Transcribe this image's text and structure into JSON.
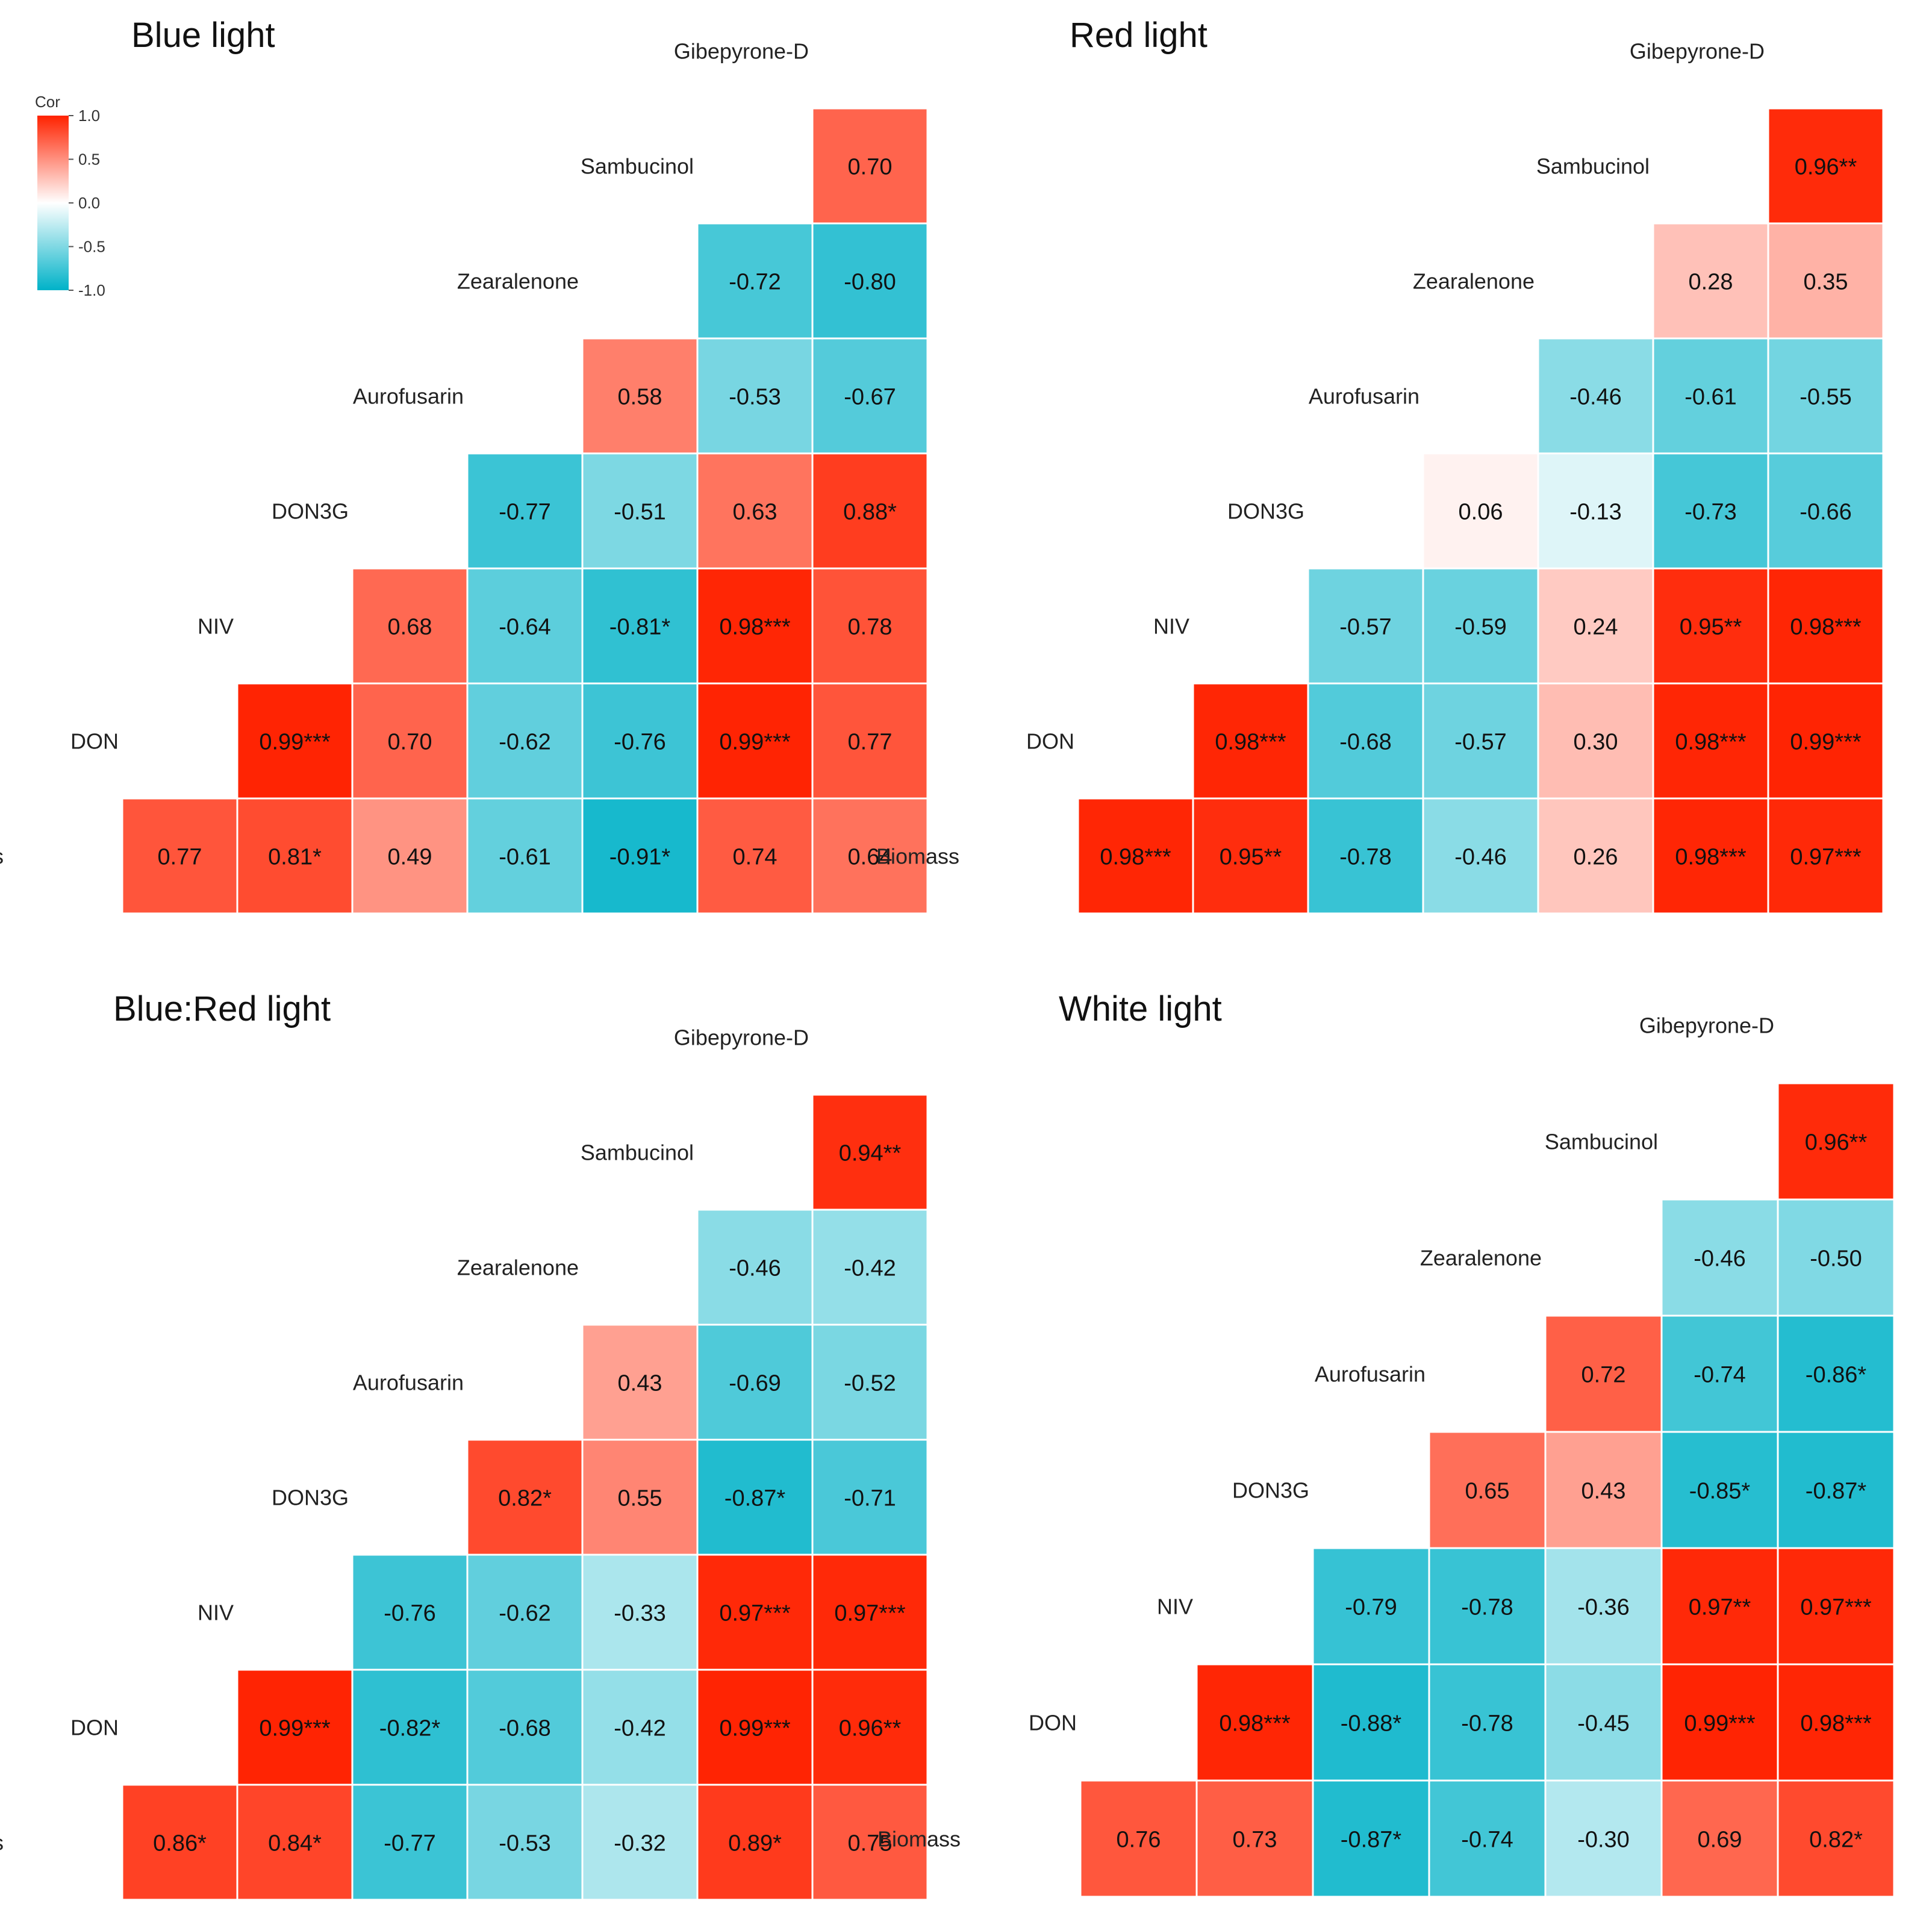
{
  "figure": {
    "variables": [
      "Biomass",
      "DON",
      "NIV",
      "DON3G",
      "Aurofusarin",
      "Zearalenone",
      "Sambucinol",
      "Gibepyrone-D"
    ]
  },
  "legend": {
    "title": "Cor",
    "ticks": [
      "1.0",
      "0.5",
      "0.0",
      "-0.5",
      "-1.0"
    ],
    "tick_values": [
      1.0,
      0.5,
      0.0,
      -0.5,
      -1.0
    ],
    "colors": {
      "positive": "#ff2200",
      "zero": "#ffffff",
      "negative": "#00b2c8"
    }
  },
  "chart_data": [
    {
      "type": "heatmap",
      "title": "Blue light",
      "variables": [
        "Biomass",
        "DON",
        "NIV",
        "DON3G",
        "Aurofusarin",
        "Zearalenone",
        "Sambucinol",
        "Gibepyrone-D"
      ],
      "cells": [
        {
          "row": "Biomass",
          "col": "DON",
          "value": 0.77,
          "sig": ""
        },
        {
          "row": "Biomass",
          "col": "NIV",
          "value": 0.81,
          "sig": "*"
        },
        {
          "row": "Biomass",
          "col": "DON3G",
          "value": 0.49,
          "sig": ""
        },
        {
          "row": "Biomass",
          "col": "Aurofusarin",
          "value": -0.61,
          "sig": ""
        },
        {
          "row": "Biomass",
          "col": "Zearalenone",
          "value": -0.91,
          "sig": "*"
        },
        {
          "row": "Biomass",
          "col": "Sambucinol",
          "value": 0.74,
          "sig": ""
        },
        {
          "row": "Biomass",
          "col": "Gibepyrone-D",
          "value": 0.64,
          "sig": ""
        },
        {
          "row": "DON",
          "col": "NIV",
          "value": 0.99,
          "sig": "***"
        },
        {
          "row": "DON",
          "col": "DON3G",
          "value": 0.7,
          "sig": ""
        },
        {
          "row": "DON",
          "col": "Aurofusarin",
          "value": -0.62,
          "sig": ""
        },
        {
          "row": "DON",
          "col": "Zearalenone",
          "value": -0.76,
          "sig": ""
        },
        {
          "row": "DON",
          "col": "Sambucinol",
          "value": 0.99,
          "sig": "***"
        },
        {
          "row": "DON",
          "col": "Gibepyrone-D",
          "value": 0.77,
          "sig": ""
        },
        {
          "row": "NIV",
          "col": "DON3G",
          "value": 0.68,
          "sig": ""
        },
        {
          "row": "NIV",
          "col": "Aurofusarin",
          "value": -0.64,
          "sig": ""
        },
        {
          "row": "NIV",
          "col": "Zearalenone",
          "value": -0.81,
          "sig": "*"
        },
        {
          "row": "NIV",
          "col": "Sambucinol",
          "value": 0.98,
          "sig": "***"
        },
        {
          "row": "NIV",
          "col": "Gibepyrone-D",
          "value": 0.78,
          "sig": ""
        },
        {
          "row": "DON3G",
          "col": "Aurofusarin",
          "value": -0.77,
          "sig": ""
        },
        {
          "row": "DON3G",
          "col": "Zearalenone",
          "value": -0.51,
          "sig": ""
        },
        {
          "row": "DON3G",
          "col": "Sambucinol",
          "value": 0.63,
          "sig": ""
        },
        {
          "row": "DON3G",
          "col": "Gibepyrone-D",
          "value": 0.88,
          "sig": "*"
        },
        {
          "row": "Aurofusarin",
          "col": "Zearalenone",
          "value": 0.58,
          "sig": ""
        },
        {
          "row": "Aurofusarin",
          "col": "Sambucinol",
          "value": -0.53,
          "sig": ""
        },
        {
          "row": "Aurofusarin",
          "col": "Gibepyrone-D",
          "value": -0.67,
          "sig": ""
        },
        {
          "row": "Zearalenone",
          "col": "Sambucinol",
          "value": -0.72,
          "sig": ""
        },
        {
          "row": "Zearalenone",
          "col": "Gibepyrone-D",
          "value": -0.8,
          "sig": ""
        },
        {
          "row": "Sambucinol",
          "col": "Gibepyrone-D",
          "value": 0.7,
          "sig": ""
        }
      ]
    },
    {
      "type": "heatmap",
      "title": "Red light",
      "variables": [
        "Biomass",
        "DON",
        "NIV",
        "DON3G",
        "Aurofusarin",
        "Zearalenone",
        "Sambucinol",
        "Gibepyrone-D"
      ],
      "cells": [
        {
          "row": "Biomass",
          "col": "DON",
          "value": 0.98,
          "sig": "***"
        },
        {
          "row": "Biomass",
          "col": "NIV",
          "value": 0.95,
          "sig": "**"
        },
        {
          "row": "Biomass",
          "col": "DON3G",
          "value": -0.78,
          "sig": ""
        },
        {
          "row": "Biomass",
          "col": "Aurofusarin",
          "value": -0.46,
          "sig": ""
        },
        {
          "row": "Biomass",
          "col": "Zearalenone",
          "value": 0.26,
          "sig": ""
        },
        {
          "row": "Biomass",
          "col": "Sambucinol",
          "value": 0.98,
          "sig": "***"
        },
        {
          "row": "Biomass",
          "col": "Gibepyrone-D",
          "value": 0.97,
          "sig": "***"
        },
        {
          "row": "DON",
          "col": "NIV",
          "value": 0.98,
          "sig": "***"
        },
        {
          "row": "DON",
          "col": "DON3G",
          "value": -0.68,
          "sig": ""
        },
        {
          "row": "DON",
          "col": "Aurofusarin",
          "value": -0.57,
          "sig": ""
        },
        {
          "row": "DON",
          "col": "Zearalenone",
          "value": 0.3,
          "sig": ""
        },
        {
          "row": "DON",
          "col": "Sambucinol",
          "value": 0.98,
          "sig": "***"
        },
        {
          "row": "DON",
          "col": "Gibepyrone-D",
          "value": 0.99,
          "sig": "***"
        },
        {
          "row": "NIV",
          "col": "DON3G",
          "value": -0.57,
          "sig": ""
        },
        {
          "row": "NIV",
          "col": "Aurofusarin",
          "value": -0.59,
          "sig": ""
        },
        {
          "row": "NIV",
          "col": "Zearalenone",
          "value": 0.24,
          "sig": ""
        },
        {
          "row": "NIV",
          "col": "Sambucinol",
          "value": 0.95,
          "sig": "**"
        },
        {
          "row": "NIV",
          "col": "Gibepyrone-D",
          "value": 0.98,
          "sig": "***"
        },
        {
          "row": "DON3G",
          "col": "Aurofusarin",
          "value": 0.06,
          "sig": ""
        },
        {
          "row": "DON3G",
          "col": "Zearalenone",
          "value": -0.13,
          "sig": ""
        },
        {
          "row": "DON3G",
          "col": "Sambucinol",
          "value": -0.73,
          "sig": ""
        },
        {
          "row": "DON3G",
          "col": "Gibepyrone-D",
          "value": -0.66,
          "sig": ""
        },
        {
          "row": "Aurofusarin",
          "col": "Zearalenone",
          "value": -0.46,
          "sig": ""
        },
        {
          "row": "Aurofusarin",
          "col": "Sambucinol",
          "value": -0.61,
          "sig": ""
        },
        {
          "row": "Aurofusarin",
          "col": "Gibepyrone-D",
          "value": -0.55,
          "sig": ""
        },
        {
          "row": "Zearalenone",
          "col": "Sambucinol",
          "value": 0.28,
          "sig": ""
        },
        {
          "row": "Zearalenone",
          "col": "Gibepyrone-D",
          "value": 0.35,
          "sig": ""
        },
        {
          "row": "Sambucinol",
          "col": "Gibepyrone-D",
          "value": 0.96,
          "sig": "**"
        }
      ]
    },
    {
      "type": "heatmap",
      "title": "Blue:Red light",
      "variables": [
        "Biomass",
        "DON",
        "NIV",
        "DON3G",
        "Aurofusarin",
        "Zearalenone",
        "Sambucinol",
        "Gibepyrone-D"
      ],
      "cells": [
        {
          "row": "Biomass",
          "col": "DON",
          "value": 0.86,
          "sig": "*"
        },
        {
          "row": "Biomass",
          "col": "NIV",
          "value": 0.84,
          "sig": "*"
        },
        {
          "row": "Biomass",
          "col": "DON3G",
          "value": -0.77,
          "sig": ""
        },
        {
          "row": "Biomass",
          "col": "Aurofusarin",
          "value": -0.53,
          "sig": ""
        },
        {
          "row": "Biomass",
          "col": "Zearalenone",
          "value": -0.32,
          "sig": ""
        },
        {
          "row": "Biomass",
          "col": "Sambucinol",
          "value": 0.89,
          "sig": "*"
        },
        {
          "row": "Biomass",
          "col": "Gibepyrone-D",
          "value": 0.75,
          "sig": ""
        },
        {
          "row": "DON",
          "col": "NIV",
          "value": 0.99,
          "sig": "***"
        },
        {
          "row": "DON",
          "col": "DON3G",
          "value": -0.82,
          "sig": "*"
        },
        {
          "row": "DON",
          "col": "Aurofusarin",
          "value": -0.68,
          "sig": ""
        },
        {
          "row": "DON",
          "col": "Zearalenone",
          "value": -0.42,
          "sig": ""
        },
        {
          "row": "DON",
          "col": "Sambucinol",
          "value": 0.99,
          "sig": "***"
        },
        {
          "row": "DON",
          "col": "Gibepyrone-D",
          "value": 0.96,
          "sig": "**"
        },
        {
          "row": "NIV",
          "col": "DON3G",
          "value": -0.76,
          "sig": ""
        },
        {
          "row": "NIV",
          "col": "Aurofusarin",
          "value": -0.62,
          "sig": ""
        },
        {
          "row": "NIV",
          "col": "Zearalenone",
          "value": -0.33,
          "sig": ""
        },
        {
          "row": "NIV",
          "col": "Sambucinol",
          "value": 0.97,
          "sig": "***"
        },
        {
          "row": "NIV",
          "col": "Gibepyrone-D",
          "value": 0.97,
          "sig": "***"
        },
        {
          "row": "DON3G",
          "col": "Aurofusarin",
          "value": 0.82,
          "sig": "*"
        },
        {
          "row": "DON3G",
          "col": "Zearalenone",
          "value": 0.55,
          "sig": ""
        },
        {
          "row": "DON3G",
          "col": "Sambucinol",
          "value": -0.87,
          "sig": "*"
        },
        {
          "row": "DON3G",
          "col": "Gibepyrone-D",
          "value": -0.71,
          "sig": ""
        },
        {
          "row": "Aurofusarin",
          "col": "Zearalenone",
          "value": 0.43,
          "sig": ""
        },
        {
          "row": "Aurofusarin",
          "col": "Sambucinol",
          "value": -0.69,
          "sig": ""
        },
        {
          "row": "Aurofusarin",
          "col": "Gibepyrone-D",
          "value": -0.52,
          "sig": ""
        },
        {
          "row": "Zearalenone",
          "col": "Sambucinol",
          "value": -0.46,
          "sig": ""
        },
        {
          "row": "Zearalenone",
          "col": "Gibepyrone-D",
          "value": -0.42,
          "sig": ""
        },
        {
          "row": "Sambucinol",
          "col": "Gibepyrone-D",
          "value": 0.94,
          "sig": "**"
        }
      ]
    },
    {
      "type": "heatmap",
      "title": "White light",
      "variables": [
        "Biomass",
        "DON",
        "NIV",
        "DON3G",
        "Aurofusarin",
        "Zearalenone",
        "Sambucinol",
        "Gibepyrone-D"
      ],
      "cells": [
        {
          "row": "Biomass",
          "col": "DON",
          "value": 0.76,
          "sig": ""
        },
        {
          "row": "Biomass",
          "col": "NIV",
          "value": 0.73,
          "sig": ""
        },
        {
          "row": "Biomass",
          "col": "DON3G",
          "value": -0.87,
          "sig": "*"
        },
        {
          "row": "Biomass",
          "col": "Aurofusarin",
          "value": -0.74,
          "sig": ""
        },
        {
          "row": "Biomass",
          "col": "Zearalenone",
          "value": -0.3,
          "sig": ""
        },
        {
          "row": "Biomass",
          "col": "Sambucinol",
          "value": 0.69,
          "sig": ""
        },
        {
          "row": "Biomass",
          "col": "Gibepyrone-D",
          "value": 0.82,
          "sig": "*"
        },
        {
          "row": "DON",
          "col": "NIV",
          "value": 0.98,
          "sig": "***"
        },
        {
          "row": "DON",
          "col": "DON3G",
          "value": -0.88,
          "sig": "*"
        },
        {
          "row": "DON",
          "col": "Aurofusarin",
          "value": -0.78,
          "sig": ""
        },
        {
          "row": "DON",
          "col": "Zearalenone",
          "value": -0.45,
          "sig": ""
        },
        {
          "row": "DON",
          "col": "Sambucinol",
          "value": 0.99,
          "sig": "***"
        },
        {
          "row": "DON",
          "col": "Gibepyrone-D",
          "value": 0.98,
          "sig": "***"
        },
        {
          "row": "NIV",
          "col": "DON3G",
          "value": -0.79,
          "sig": ""
        },
        {
          "row": "NIV",
          "col": "Aurofusarin",
          "value": -0.78,
          "sig": ""
        },
        {
          "row": "NIV",
          "col": "Zearalenone",
          "value": -0.36,
          "sig": ""
        },
        {
          "row": "NIV",
          "col": "Sambucinol",
          "value": 0.97,
          "sig": "**"
        },
        {
          "row": "NIV",
          "col": "Gibepyrone-D",
          "value": 0.97,
          "sig": "***"
        },
        {
          "row": "DON3G",
          "col": "Aurofusarin",
          "value": 0.65,
          "sig": ""
        },
        {
          "row": "DON3G",
          "col": "Zearalenone",
          "value": 0.43,
          "sig": ""
        },
        {
          "row": "DON3G",
          "col": "Sambucinol",
          "value": -0.85,
          "sig": "*"
        },
        {
          "row": "DON3G",
          "col": "Gibepyrone-D",
          "value": -0.87,
          "sig": "*"
        },
        {
          "row": "Aurofusarin",
          "col": "Zearalenone",
          "value": 0.72,
          "sig": ""
        },
        {
          "row": "Aurofusarin",
          "col": "Sambucinol",
          "value": -0.74,
          "sig": ""
        },
        {
          "row": "Aurofusarin",
          "col": "Gibepyrone-D",
          "value": -0.86,
          "sig": "*"
        },
        {
          "row": "Zearalenone",
          "col": "Sambucinol",
          "value": -0.46,
          "sig": ""
        },
        {
          "row": "Zearalenone",
          "col": "Gibepyrone-D",
          "value": -0.5,
          "sig": ""
        },
        {
          "row": "Sambucinol",
          "col": "Gibepyrone-D",
          "value": 0.96,
          "sig": "**"
        }
      ]
    }
  ]
}
